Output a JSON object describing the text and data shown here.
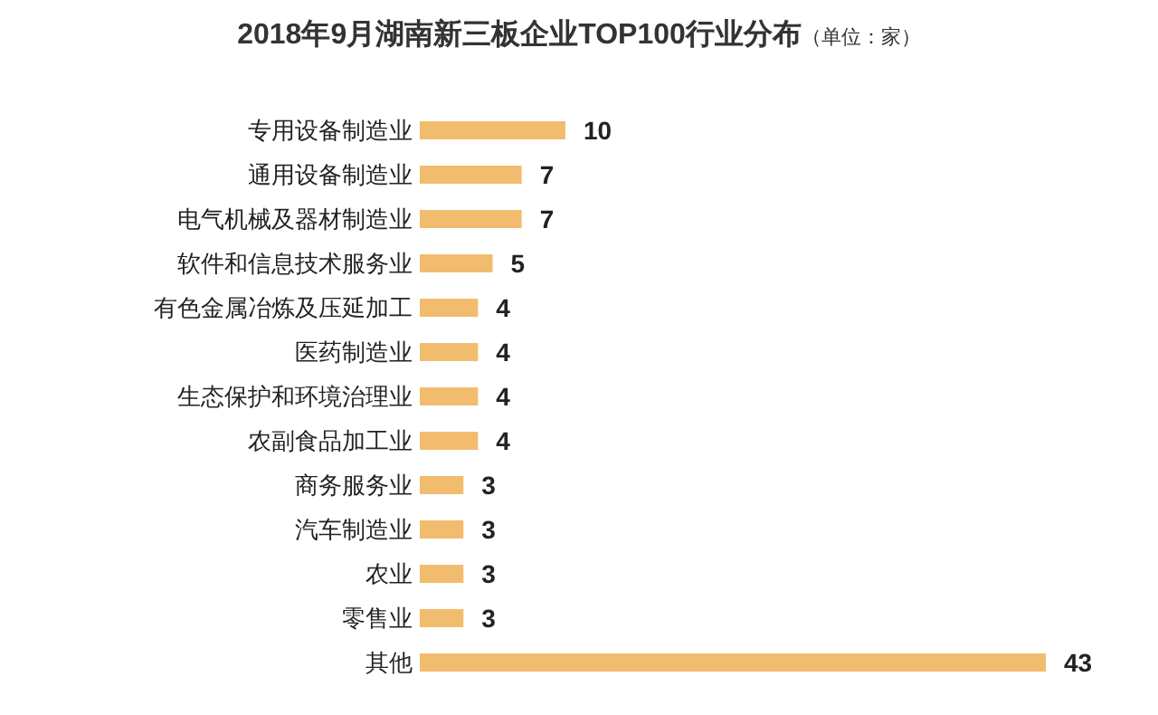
{
  "chart_data": {
    "type": "bar",
    "orientation": "horizontal",
    "title": "2018年9月湖南新三板企业TOP100行业分布",
    "subtitle": "（单位：家）",
    "categories": [
      "专用设备制造业",
      "通用设备制造业",
      "电气机械及器材制造业",
      "软件和信息技术服务业",
      "有色金属冶炼及压延加工",
      "医药制造业",
      "生态保护和环境治理业",
      "农副食品加工业",
      "商务服务业",
      "汽车制造业",
      "农业",
      "零售业",
      "其他"
    ],
    "values": [
      10,
      7,
      7,
      5,
      4,
      4,
      4,
      4,
      3,
      3,
      3,
      3,
      43
    ],
    "color": "#f2bc6e",
    "data_labels": true
  }
}
